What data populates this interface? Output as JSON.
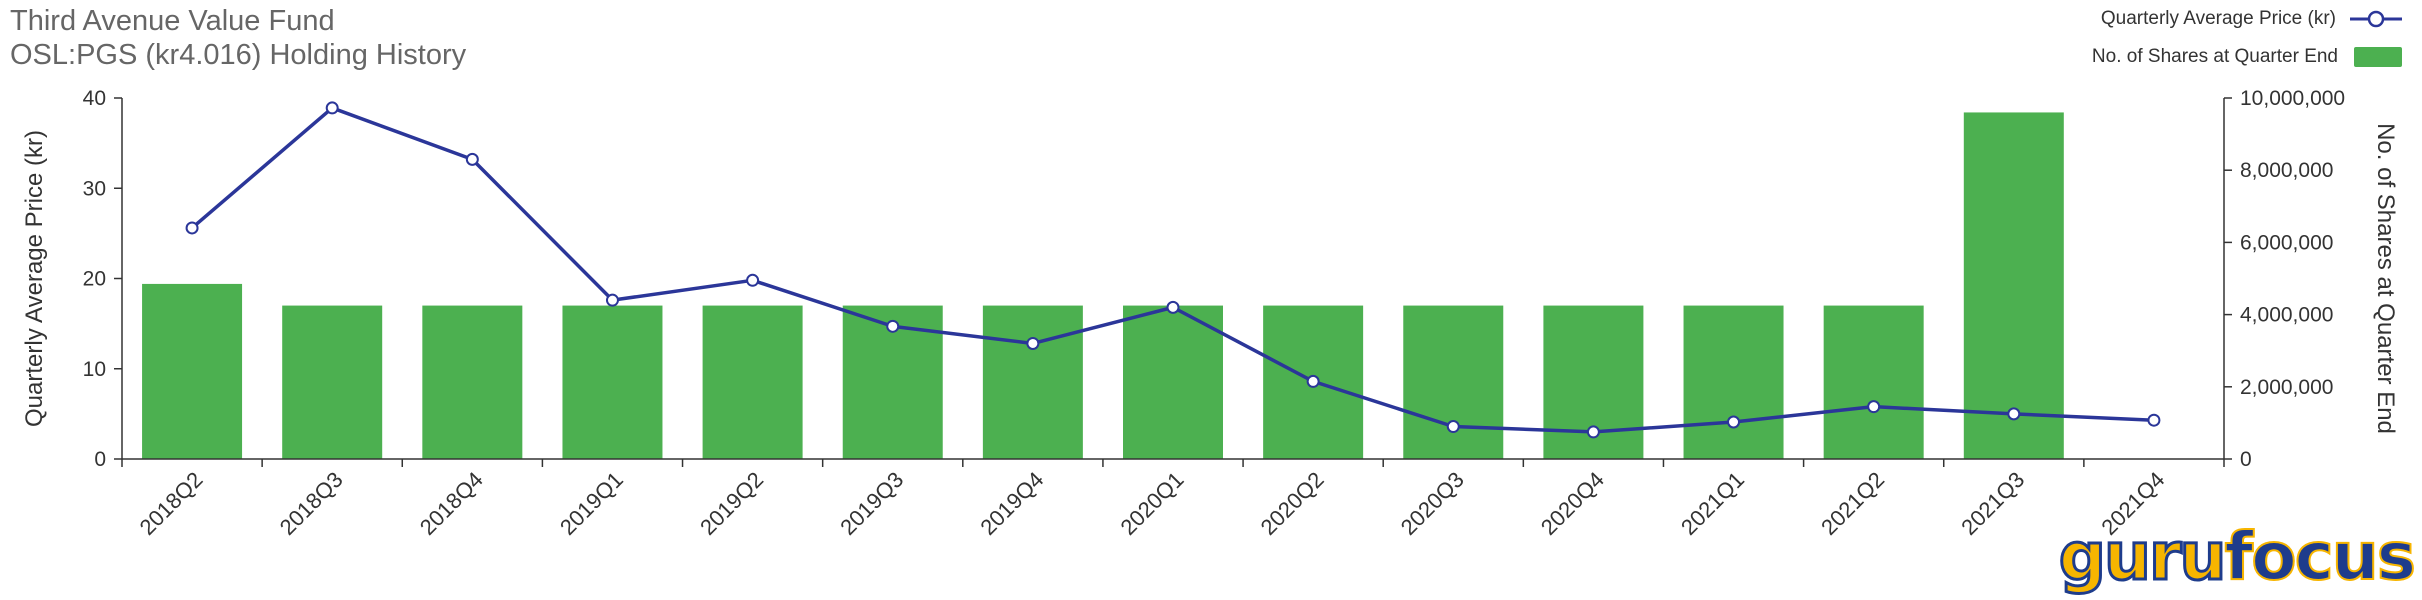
{
  "header": {
    "line1": "Third Avenue Value Fund",
    "line2": "OSL:PGS (kr4.016)  Holding History"
  },
  "legend": {
    "line_label": "Quarterly Average Price (kr)",
    "bar_label": "No. of Shares at Quarter End"
  },
  "logo": {
    "part1": "guru",
    "part2": "focus"
  },
  "colors": {
    "bar": "#4cb050",
    "line": "#2b3699",
    "axis": "#333333"
  },
  "chart_data": {
    "type": "bar+line",
    "categories": [
      "2018Q2",
      "2018Q3",
      "2018Q4",
      "2019Q1",
      "2019Q2",
      "2019Q3",
      "2019Q4",
      "2020Q1",
      "2020Q2",
      "2020Q3",
      "2020Q4",
      "2021Q1",
      "2021Q2",
      "2021Q3",
      "2021Q4"
    ],
    "series": [
      {
        "name": "No. of Shares at Quarter End",
        "type": "bar",
        "axis": "right",
        "values": [
          4850000,
          4250000,
          4250000,
          4250000,
          4250000,
          4250000,
          4250000,
          4250000,
          4250000,
          4250000,
          4250000,
          4250000,
          4250000,
          9600000,
          null
        ]
      },
      {
        "name": "Quarterly Average Price (kr)",
        "type": "line",
        "axis": "left",
        "values": [
          25.6,
          38.9,
          33.2,
          17.6,
          19.8,
          14.7,
          12.8,
          16.8,
          8.6,
          3.6,
          3.0,
          4.1,
          5.8,
          5.0,
          4.3
        ]
      }
    ],
    "ylabel_left": "Quarterly Average Price (kr)",
    "ylabel_right": "No. of Shares at Quarter End",
    "ylim_left": [
      0,
      40
    ],
    "ylim_right": [
      0,
      10000000
    ],
    "yticks_left": [
      "0",
      "10",
      "20",
      "30",
      "40"
    ],
    "yticks_right": [
      "0",
      "2,000,000",
      "4,000,000",
      "6,000,000",
      "8,000,000",
      "10,000,000"
    ],
    "grid": false,
    "legend_position": "top-right"
  }
}
